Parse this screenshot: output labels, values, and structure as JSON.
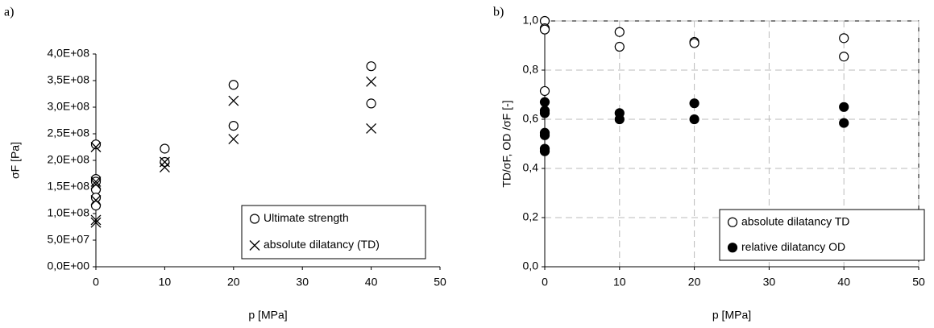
{
  "chart_data": [
    {
      "type": "scatter",
      "panel_label": "a)",
      "xlabel": "p [MPa]",
      "ylabel": "σF [Pa]",
      "xlim": [
        0,
        50
      ],
      "xticks": [
        0,
        10,
        20,
        30,
        40,
        50
      ],
      "ylim": [
        0,
        400000000
      ],
      "yticks": [
        {
          "value": 0,
          "label": "0,0E+00"
        },
        {
          "value": 50000000,
          "label": "5,0E+07"
        },
        {
          "value": 100000000,
          "label": "1,0E+08"
        },
        {
          "value": 150000000,
          "label": "1,5E+08"
        },
        {
          "value": 200000000,
          "label": "2,0E+08"
        },
        {
          "value": 250000000,
          "label": "2,5E+08"
        },
        {
          "value": 300000000,
          "label": "3,0E+08"
        },
        {
          "value": 350000000,
          "label": "3,5E+08"
        },
        {
          "value": 400000000,
          "label": "4,0E+08"
        }
      ],
      "grid": false,
      "frame": false,
      "legend": "lower right",
      "series": [
        {
          "name": "Ultimate strength",
          "marker": "open-circle",
          "color": "#000000",
          "x": [
            0,
            0,
            0,
            0,
            0,
            0,
            10,
            10,
            20,
            20,
            40,
            40
          ],
          "values": [
            230000000,
            165000000,
            160000000,
            145000000,
            130000000,
            115000000,
            222000000,
            197000000,
            342000000,
            265000000,
            377000000,
            307000000
          ]
        },
        {
          "name": "absolute dilatancy (TD)",
          "marker": "cross",
          "color": "#000000",
          "x": [
            0,
            0,
            0,
            0,
            0,
            0,
            10,
            10,
            20,
            20,
            40,
            40
          ],
          "values": [
            225000000,
            160000000,
            155000000,
            125000000,
            88000000,
            83000000,
            197000000,
            187000000,
            312000000,
            240000000,
            348000000,
            260000000
          ]
        }
      ]
    },
    {
      "type": "scatter",
      "panel_label": "b)",
      "xlabel": "p [MPa]",
      "ylabel": "TD/σF, OD /σF  [-]",
      "xlim": [
        0,
        50
      ],
      "xticks": [
        0,
        10,
        20,
        30,
        40,
        50
      ],
      "ylim": [
        0,
        1
      ],
      "yticks": [
        {
          "value": 0,
          "label": "0,0"
        },
        {
          "value": 0.2,
          "label": "0,2"
        },
        {
          "value": 0.4,
          "label": "0,4"
        },
        {
          "value": 0.6,
          "label": "0,6"
        },
        {
          "value": 0.8,
          "label": "0,8"
        },
        {
          "value": 1,
          "label": "1,0"
        }
      ],
      "grid": true,
      "frame": true,
      "legend": "lower right",
      "series": [
        {
          "name": "absolute dilatancy TD",
          "marker": "open-circle",
          "color": "#000000",
          "x": [
            0,
            0,
            0,
            0,
            10,
            10,
            20,
            20,
            40,
            40
          ],
          "values": [
            1.0,
            0.97,
            0.965,
            0.715,
            0.955,
            0.895,
            0.915,
            0.91,
            0.93,
            0.855
          ]
        },
        {
          "name": "relative dilatancy OD",
          "marker": "filled-circle",
          "color": "#000000",
          "x": [
            0,
            0,
            0,
            0,
            0,
            0,
            0,
            10,
            10,
            20,
            20,
            40,
            40
          ],
          "values": [
            0.67,
            0.635,
            0.625,
            0.545,
            0.535,
            0.48,
            0.47,
            0.625,
            0.6,
            0.665,
            0.6,
            0.65,
            0.585
          ]
        }
      ]
    }
  ]
}
